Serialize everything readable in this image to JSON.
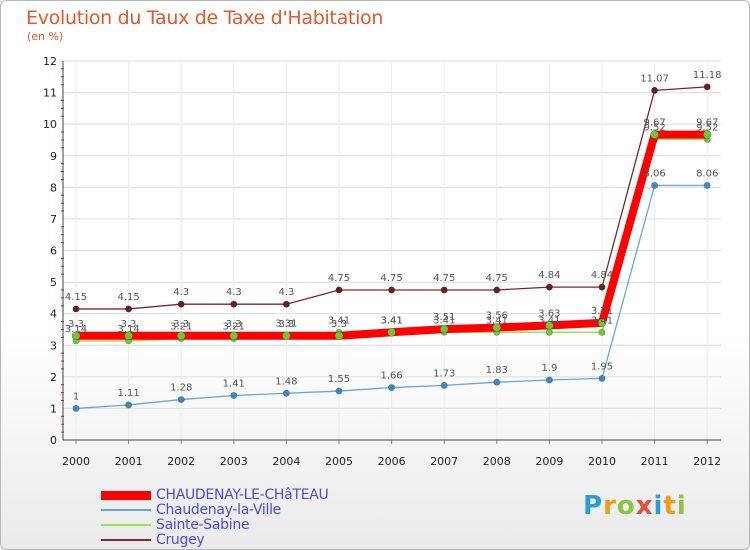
{
  "title": "Evolution du Taux de Taxe d'Habitation",
  "subtitle": "(en %)",
  "logo": {
    "text": "Proxiti",
    "colors": [
      "#2a9fd6",
      "#f39c12",
      "#8cc63f",
      "#e74c3c",
      "#2a9fd6",
      "#f39c12",
      "#8cc63f"
    ]
  },
  "chart_data": {
    "type": "line",
    "title": "Evolution du Taux de Taxe d'Habitation",
    "ylabel": "(en %)",
    "xlabel": "",
    "ylim": [
      0,
      12
    ],
    "yticks": [
      "0",
      "1",
      "2",
      "3",
      "4",
      "5",
      "6",
      "7",
      "8",
      "9",
      "10",
      "11",
      "12"
    ],
    "categories": [
      "2000",
      "2001",
      "2002",
      "2003",
      "2004",
      "2005",
      "2006",
      "2007",
      "2008",
      "2009",
      "2010",
      "2011",
      "2012"
    ],
    "series": [
      {
        "name": "Crugey",
        "color": "#7a2a2a",
        "width": 1.3,
        "marker": "#6b1f1f",
        "values": [
          4.15,
          4.15,
          4.3,
          4.3,
          4.3,
          4.75,
          4.75,
          4.75,
          4.75,
          4.84,
          4.84,
          11.07,
          11.18
        ],
        "labels": [
          "4.15",
          "4.15",
          "4.3",
          "4.3",
          "4.3",
          "4.75",
          "4.75",
          "4.75",
          "4.75",
          "4.84",
          "4.84",
          "11.07",
          "11.18"
        ]
      },
      {
        "name": "Chaudenay-la-Ville",
        "color": "#6aa6d2",
        "width": 1.3,
        "marker": "#3d87c4",
        "values": [
          1,
          1.11,
          1.28,
          1.41,
          1.48,
          1.55,
          1.66,
          1.73,
          1.83,
          1.9,
          1.95,
          8.06,
          8.06
        ],
        "labels": [
          "1",
          "1.11",
          "1.28",
          "1.41",
          "1.48",
          "1.55",
          "1.66",
          "1.73",
          "1.83",
          "1.9",
          "1.95",
          "8.06",
          "8.06"
        ]
      },
      {
        "name": "Sainte-Sabine",
        "color": "#9be05a",
        "width": 1.5,
        "marker": "#6cc73a",
        "values": [
          3.14,
          3.14,
          3.21,
          3.21,
          3.31,
          3.41,
          3.41,
          3.41,
          3.41,
          3.41,
          3.41,
          9.52,
          9.52
        ],
        "labels": [
          "3.14",
          "3.14",
          "3.21",
          "3.21",
          "3.31",
          "3.41",
          "3.41",
          "3.41",
          "3.41",
          "3.41",
          "3.41",
          "9.52",
          "9.52"
        ]
      },
      {
        "name": "CHAUDENAY-LE-CHâTEAU",
        "color": "#ff0000",
        "width": 8,
        "marker": "#6cc73a",
        "values": [
          3.3,
          3.3,
          3.3,
          3.3,
          3.3,
          3.3,
          3.41,
          3.51,
          3.56,
          3.63,
          3.71,
          9.67,
          9.67
        ],
        "labels": [
          "3.3",
          "3.3",
          "3.3",
          "3.3",
          "3.3",
          "3.3",
          "3.41",
          "3.51",
          "3.56",
          "3.63",
          "3.71",
          "9.67",
          "9.67"
        ]
      }
    ],
    "legend": [
      {
        "label": "CHAUDENAY-LE-CHâTEAU",
        "color": "#ff0000",
        "thickness": 9
      },
      {
        "label": "Chaudenay-la-Ville",
        "color": "#6aa6d2",
        "thickness": 2
      },
      {
        "label": "Sainte-Sabine",
        "color": "#9be05a",
        "thickness": 2
      },
      {
        "label": "Crugey",
        "color": "#7a2a2a",
        "thickness": 2
      }
    ],
    "legend_position": "bottom-left"
  }
}
